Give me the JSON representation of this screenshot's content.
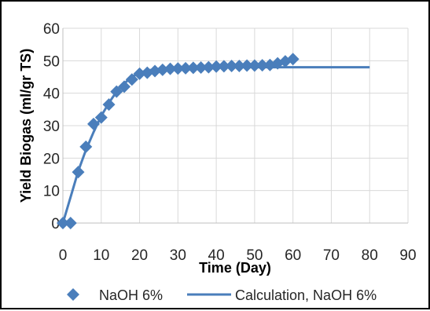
{
  "chart_data": {
    "type": "scatter",
    "title": "",
    "xlabel": "Time (Day)",
    "ylabel": "Yield Biogas (ml/gr TS)",
    "xlim": [
      0,
      90
    ],
    "ylim": [
      0,
      60
    ],
    "x_ticks": [
      0,
      10,
      20,
      30,
      40,
      50,
      60,
      70,
      80,
      90
    ],
    "y_ticks": [
      0,
      10,
      20,
      30,
      40,
      50,
      60
    ],
    "grid": true,
    "legend_position": "bottom",
    "series": [
      {
        "name": "NaOH 6%",
        "kind": "scatter",
        "marker": "diamond",
        "color": "#4a7ebb",
        "points": [
          [
            0,
            0
          ],
          [
            2,
            0
          ],
          [
            4,
            15.7
          ],
          [
            6,
            23.5
          ],
          [
            8,
            30.5
          ],
          [
            10,
            32.5
          ],
          [
            12,
            36.5
          ],
          [
            14,
            40.5
          ],
          [
            16,
            42
          ],
          [
            18,
            44.2
          ],
          [
            20,
            46
          ],
          [
            22,
            46.3
          ],
          [
            24,
            46.8
          ],
          [
            26,
            47.2
          ],
          [
            28,
            47.5
          ],
          [
            30,
            47.6
          ],
          [
            32,
            47.7
          ],
          [
            34,
            47.8
          ],
          [
            36,
            47.9
          ],
          [
            38,
            48
          ],
          [
            40,
            48.2
          ],
          [
            42,
            48.3
          ],
          [
            44,
            48.4
          ],
          [
            46,
            48.4
          ],
          [
            48,
            48.5
          ],
          [
            50,
            48.5
          ],
          [
            52,
            48.6
          ],
          [
            54,
            48.7
          ],
          [
            56,
            49.2
          ],
          [
            58,
            49.8
          ],
          [
            60,
            50.5
          ]
        ]
      },
      {
        "name": "Calculation, NaOH 6%",
        "kind": "line",
        "color": "#4a7ebb",
        "points": [
          [
            0,
            0
          ],
          [
            2,
            8
          ],
          [
            4,
            16
          ],
          [
            6,
            22.5
          ],
          [
            8,
            28
          ],
          [
            10,
            33
          ],
          [
            12,
            37
          ],
          [
            14,
            40.5
          ],
          [
            16,
            43
          ],
          [
            18,
            45
          ],
          [
            20,
            46.3
          ],
          [
            22,
            47
          ],
          [
            25,
            47.5
          ],
          [
            30,
            47.8
          ],
          [
            40,
            48
          ],
          [
            50,
            48
          ],
          [
            60,
            48
          ],
          [
            70,
            48
          ],
          [
            80,
            48
          ]
        ]
      }
    ]
  }
}
